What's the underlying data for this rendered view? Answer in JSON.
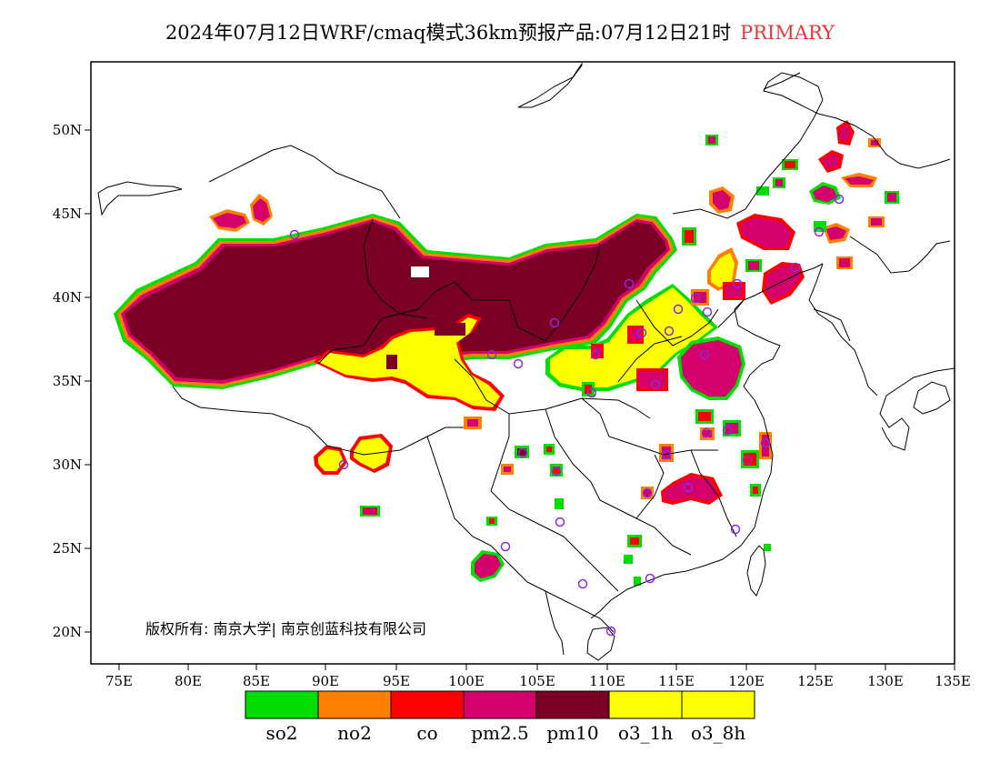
{
  "header": {
    "title": "2024年07月12日WRF/cmaq模式36km预报产品:07月12日21时",
    "tag": "PRIMARY",
    "tag_color": "#e23a3a"
  },
  "axes": {
    "lon_ticks": [
      "75E",
      "80E",
      "85E",
      "90E",
      "95E",
      "100E",
      "105E",
      "110E",
      "115E",
      "120E",
      "125E",
      "130E",
      "135E"
    ],
    "lat_ticks": [
      "50N",
      "45N",
      "40N",
      "35N",
      "30N",
      "25N",
      "20N"
    ]
  },
  "copyright": "版权所有: 南京大学| 南京创蓝科技有限公司",
  "legend": [
    {
      "label": "so2",
      "color": "#00dd00"
    },
    {
      "label": "no2",
      "color": "#ff8000"
    },
    {
      "label": "co",
      "color": "#ff0000"
    },
    {
      "label": "pm2.5",
      "color": "#d4006c"
    },
    {
      "label": "pm10",
      "color": "#7a0025"
    },
    {
      "label": "o3_1h",
      "color": "#ffff00"
    },
    {
      "label": "o3_8h",
      "color": "#ffff00"
    }
  ]
}
